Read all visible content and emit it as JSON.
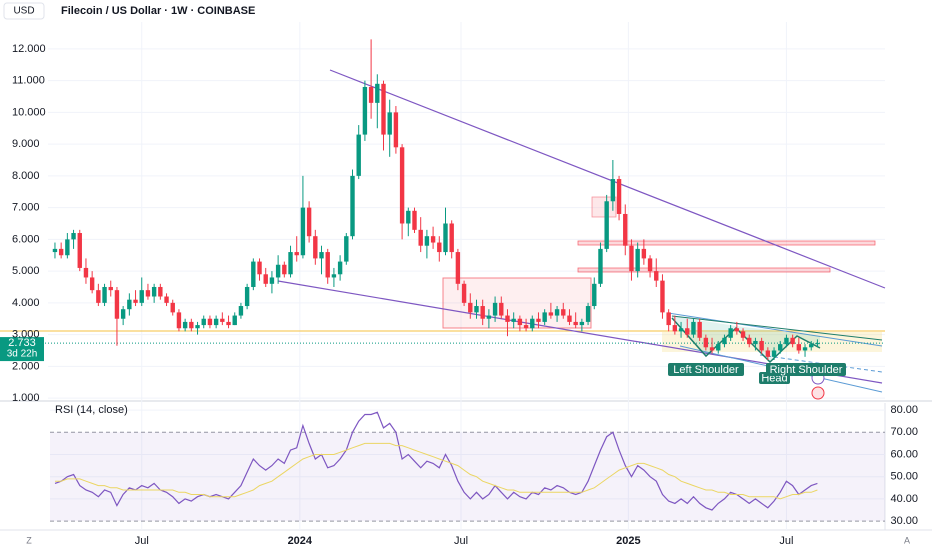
{
  "header": {
    "currency": "USD",
    "title": "Filecoin / US Dollar · 1W · COINBASE"
  },
  "controls": [
    "Z",
    "A"
  ],
  "chart_data": [
    {
      "type": "candlestick",
      "up_color": "#089981",
      "down_color": "#f23645",
      "grid": true,
      "xlim": [
        -0.8,
        133.9
      ],
      "xticks": [
        {
          "value": 14,
          "label": "Jul"
        },
        {
          "value": 39.5,
          "label": "2024"
        },
        {
          "value": 65.5,
          "label": "Jul"
        },
        {
          "value": 92.5,
          "label": "2025"
        },
        {
          "value": 118,
          "label": "Jul"
        }
      ],
      "ylim": [
        0.94,
        13.54
      ],
      "yticks": [
        {
          "value": 1,
          "label": "1.000"
        },
        {
          "value": 2,
          "label": "2.000"
        },
        {
          "value": 3,
          "label": "3.000"
        },
        {
          "value": 4,
          "label": "4.000"
        },
        {
          "value": 5,
          "label": "5.000"
        },
        {
          "value": 6,
          "label": "6.000"
        },
        {
          "value": 7,
          "label": "7.000"
        },
        {
          "value": 8,
          "label": "8.000"
        },
        {
          "value": 9,
          "label": "9.000"
        },
        {
          "value": 10,
          "label": "10.000"
        },
        {
          "value": 11,
          "label": "11.000"
        },
        {
          "value": 12,
          "label": "12.000"
        }
      ],
      "last_price": 2.733,
      "countdown": "3d 22h",
      "annotations": [
        "Left Shoulder",
        "Head",
        "Right Shoulder"
      ],
      "ohlc": [
        [
          5.6,
          5.9,
          5.4,
          5.7
        ],
        [
          5.7,
          5.9,
          5.4,
          5.5
        ],
        [
          5.5,
          6.2,
          5.4,
          6.0
        ],
        [
          6.0,
          6.3,
          5.7,
          6.2
        ],
        [
          6.2,
          6.3,
          5.0,
          5.1
        ],
        [
          5.1,
          5.4,
          4.6,
          4.8
        ],
        [
          4.8,
          5.0,
          4.3,
          4.4
        ],
        [
          4.4,
          4.6,
          3.9,
          4.0
        ],
        [
          4.0,
          4.6,
          3.9,
          4.5
        ],
        [
          4.5,
          4.7,
          4.2,
          4.4
        ],
        [
          4.4,
          4.5,
          2.65,
          3.5
        ],
        [
          3.5,
          3.9,
          3.3,
          3.8
        ],
        [
          3.8,
          4.3,
          3.6,
          4.1
        ],
        [
          4.1,
          4.4,
          3.9,
          4.0
        ],
        [
          4.0,
          4.8,
          3.9,
          4.4
        ],
        [
          4.4,
          4.6,
          4.1,
          4.2
        ],
        [
          4.2,
          4.6,
          4.0,
          4.5
        ],
        [
          4.5,
          4.6,
          4.1,
          4.2
        ],
        [
          4.2,
          4.3,
          3.9,
          4.0
        ],
        [
          4.0,
          4.1,
          3.6,
          3.7
        ],
        [
          3.7,
          3.8,
          3.1,
          3.2
        ],
        [
          3.2,
          3.5,
          3.1,
          3.4
        ],
        [
          3.4,
          3.5,
          3.1,
          3.2
        ],
        [
          3.2,
          3.4,
          3.0,
          3.3
        ],
        [
          3.3,
          3.6,
          3.2,
          3.5
        ],
        [
          3.5,
          3.6,
          3.2,
          3.3
        ],
        [
          3.3,
          3.6,
          3.2,
          3.5
        ],
        [
          3.5,
          3.7,
          3.3,
          3.4
        ],
        [
          3.4,
          3.6,
          3.2,
          3.3
        ],
        [
          3.3,
          3.7,
          3.3,
          3.6
        ],
        [
          3.6,
          4.0,
          3.5,
          3.9
        ],
        [
          3.9,
          4.6,
          3.8,
          4.5
        ],
        [
          4.5,
          5.4,
          4.4,
          5.3
        ],
        [
          5.3,
          5.4,
          4.7,
          4.9
        ],
        [
          4.9,
          5.1,
          4.5,
          4.6
        ],
        [
          4.6,
          5.0,
          4.3,
          4.8
        ],
        [
          4.8,
          5.5,
          4.6,
          5.2
        ],
        [
          5.2,
          5.3,
          4.8,
          4.9
        ],
        [
          4.9,
          5.8,
          4.8,
          5.6
        ],
        [
          5.6,
          6.1,
          5.3,
          5.5
        ],
        [
          5.5,
          8.0,
          5.4,
          7.0
        ],
        [
          7.0,
          7.2,
          5.9,
          6.1
        ],
        [
          6.1,
          6.3,
          5.2,
          5.4
        ],
        [
          5.4,
          5.8,
          4.9,
          5.6
        ],
        [
          5.6,
          5.7,
          4.6,
          4.8
        ],
        [
          4.8,
          5.1,
          4.5,
          4.9
        ],
        [
          4.9,
          5.5,
          4.7,
          5.3
        ],
        [
          5.3,
          6.2,
          5.2,
          6.1
        ],
        [
          6.1,
          8.2,
          6.0,
          8.0
        ],
        [
          8.0,
          9.6,
          7.9,
          9.3
        ],
        [
          9.3,
          11.0,
          9.1,
          10.8
        ],
        [
          10.8,
          12.3,
          9.8,
          10.3
        ],
        [
          10.3,
          11.2,
          9.5,
          10.9
        ],
        [
          10.9,
          11.0,
          8.8,
          9.3
        ],
        [
          9.3,
          10.4,
          8.6,
          10.0
        ],
        [
          10.0,
          10.2,
          8.7,
          8.9
        ],
        [
          8.9,
          9.0,
          6.0,
          6.5
        ],
        [
          6.5,
          7.0,
          6.1,
          6.9
        ],
        [
          6.9,
          7.0,
          6.2,
          6.3
        ],
        [
          6.3,
          6.7,
          5.6,
          5.8
        ],
        [
          5.8,
          6.3,
          5.4,
          6.1
        ],
        [
          6.1,
          6.4,
          5.7,
          5.9
        ],
        [
          5.9,
          6.1,
          5.3,
          5.6
        ],
        [
          5.6,
          7.0,
          5.5,
          6.5
        ],
        [
          6.5,
          6.6,
          5.4,
          5.6
        ],
        [
          5.6,
          5.7,
          4.4,
          4.6
        ],
        [
          4.6,
          4.7,
          3.9,
          4.0
        ],
        [
          4.0,
          4.3,
          3.5,
          3.7
        ],
        [
          3.7,
          4.1,
          3.5,
          3.9
        ],
        [
          3.9,
          4.1,
          3.3,
          3.5
        ],
        [
          3.5,
          3.8,
          3.2,
          3.6
        ],
        [
          3.6,
          4.2,
          3.4,
          4.0
        ],
        [
          4.0,
          4.2,
          3.5,
          3.6
        ],
        [
          3.6,
          3.8,
          2.95,
          3.4
        ],
        [
          3.4,
          3.7,
          3.2,
          3.5
        ],
        [
          3.5,
          3.6,
          3.1,
          3.3
        ],
        [
          3.3,
          3.5,
          3.1,
          3.2
        ],
        [
          3.2,
          3.6,
          3.1,
          3.5
        ],
        [
          3.5,
          3.7,
          3.2,
          3.4
        ],
        [
          3.4,
          3.8,
          3.3,
          3.7
        ],
        [
          3.7,
          4.0,
          3.5,
          3.6
        ],
        [
          3.6,
          3.9,
          3.4,
          3.8
        ],
        [
          3.8,
          4.0,
          3.5,
          3.6
        ],
        [
          3.6,
          3.8,
          3.3,
          3.4
        ],
        [
          3.4,
          3.7,
          3.2,
          3.3
        ],
        [
          3.3,
          3.5,
          3.1,
          3.4
        ],
        [
          3.4,
          4.0,
          3.3,
          3.9
        ],
        [
          3.9,
          4.8,
          3.8,
          4.6
        ],
        [
          4.6,
          5.9,
          4.5,
          5.7
        ],
        [
          5.7,
          7.4,
          5.6,
          7.2
        ],
        [
          7.2,
          8.5,
          6.9,
          7.9
        ],
        [
          7.9,
          8.0,
          6.6,
          6.8
        ],
        [
          6.8,
          7.1,
          5.5,
          5.8
        ],
        [
          5.8,
          6.0,
          4.7,
          5.0
        ],
        [
          5.0,
          5.9,
          4.8,
          5.7
        ],
        [
          5.7,
          6.0,
          5.2,
          5.4
        ],
        [
          5.4,
          5.5,
          4.8,
          5.0
        ],
        [
          5.0,
          5.4,
          4.5,
          4.7
        ],
        [
          4.7,
          4.9,
          3.5,
          3.7
        ],
        [
          3.7,
          3.8,
          3.1,
          3.3
        ],
        [
          3.3,
          3.6,
          3.0,
          3.1
        ],
        [
          3.1,
          3.4,
          2.9,
          3.2
        ],
        [
          3.2,
          3.5,
          2.9,
          3.0
        ],
        [
          3.0,
          3.5,
          2.9,
          3.4
        ],
        [
          3.4,
          3.5,
          2.8,
          2.9
        ],
        [
          2.9,
          3.0,
          2.5,
          2.6
        ],
        [
          2.6,
          2.9,
          2.4,
          2.5
        ],
        [
          2.5,
          2.8,
          2.4,
          2.7
        ],
        [
          2.7,
          3.0,
          2.6,
          2.9
        ],
        [
          2.9,
          3.3,
          2.8,
          3.2
        ],
        [
          3.2,
          3.4,
          3.0,
          3.1
        ],
        [
          3.1,
          3.2,
          2.8,
          2.9
        ],
        [
          2.9,
          3.0,
          2.6,
          2.7
        ],
        [
          2.7,
          2.9,
          2.5,
          2.8
        ],
        [
          2.8,
          2.9,
          2.4,
          2.5
        ],
        [
          2.5,
          2.6,
          2.2,
          2.3
        ],
        [
          2.3,
          2.6,
          2.2,
          2.5
        ],
        [
          2.5,
          2.8,
          2.4,
          2.7
        ],
        [
          2.7,
          3.0,
          2.6,
          2.9
        ],
        [
          2.9,
          3.0,
          2.6,
          2.7
        ],
        [
          2.7,
          2.9,
          2.4,
          2.5
        ],
        [
          2.5,
          2.7,
          2.3,
          2.6
        ],
        [
          2.6,
          2.8,
          2.5,
          2.7
        ],
        [
          2.7,
          2.85,
          2.6,
          2.733
        ]
      ]
    },
    {
      "type": "line",
      "title": "RSI (14, close)",
      "grid": true,
      "xlim": [
        -0.8,
        133.9
      ],
      "ylim": [
        26,
        83.2
      ],
      "yticks": [
        {
          "value": 30,
          "label": "30.00"
        },
        {
          "value": 40,
          "label": "40.00"
        },
        {
          "value": 50,
          "label": "50.00"
        },
        {
          "value": 60,
          "label": "60.00"
        },
        {
          "value": 70,
          "label": "70.00"
        },
        {
          "value": 80,
          "label": "80.00"
        }
      ],
      "band": [
        30,
        70
      ],
      "band_color": "#7e57c2",
      "series": [
        {
          "color": "#7e57c2",
          "values": [
            47,
            48,
            50,
            51,
            46,
            44,
            43,
            41,
            44,
            43,
            37,
            42,
            45,
            44,
            46,
            45,
            47,
            44,
            43,
            41,
            38,
            40,
            39,
            41,
            42,
            41,
            42,
            41,
            40,
            43,
            46,
            52,
            58,
            55,
            53,
            55,
            58,
            56,
            62,
            63,
            73,
            65,
            58,
            60,
            54,
            55,
            58,
            62,
            70,
            75,
            78,
            78,
            79,
            72,
            74,
            70,
            58,
            60,
            57,
            54,
            57,
            56,
            54,
            60,
            55,
            48,
            43,
            40,
            43,
            40,
            42,
            46,
            43,
            40,
            43,
            41,
            40,
            43,
            42,
            45,
            44,
            46,
            45,
            43,
            42,
            43,
            48,
            55,
            62,
            68,
            70,
            62,
            55,
            50,
            55,
            53,
            50,
            48,
            42,
            39,
            38,
            40,
            38,
            41,
            38,
            36,
            35,
            38,
            40,
            43,
            42,
            40,
            38,
            40,
            38,
            36,
            39,
            43,
            48,
            46,
            42,
            44,
            46,
            47
          ]
        },
        {
          "color": "#f5e15c",
          "values": [
            48,
            48,
            49,
            49,
            49,
            48,
            47,
            46,
            46,
            45,
            45,
            44,
            44,
            44,
            44,
            44,
            44,
            44,
            44,
            44,
            43,
            43,
            42,
            42,
            42,
            41,
            41,
            41,
            41,
            41,
            42,
            43,
            44,
            46,
            47,
            48,
            50,
            52,
            54,
            56,
            58,
            59,
            60,
            60,
            60,
            60,
            61,
            62,
            63,
            64,
            65,
            65,
            65,
            65,
            65,
            64,
            64,
            63,
            62,
            61,
            60,
            59,
            58,
            57,
            56,
            55,
            53,
            51,
            50,
            48,
            47,
            46,
            45,
            44,
            44,
            43,
            43,
            43,
            43,
            43,
            43,
            43,
            43,
            43,
            43,
            43,
            44,
            45,
            47,
            49,
            51,
            53,
            54,
            55,
            56,
            56,
            55,
            54,
            53,
            51,
            50,
            48,
            47,
            46,
            45,
            44,
            44,
            43,
            43,
            42,
            42,
            42,
            41,
            41,
            41,
            41,
            41,
            40,
            41,
            42,
            42,
            43,
            43,
            44
          ]
        }
      ]
    }
  ]
}
